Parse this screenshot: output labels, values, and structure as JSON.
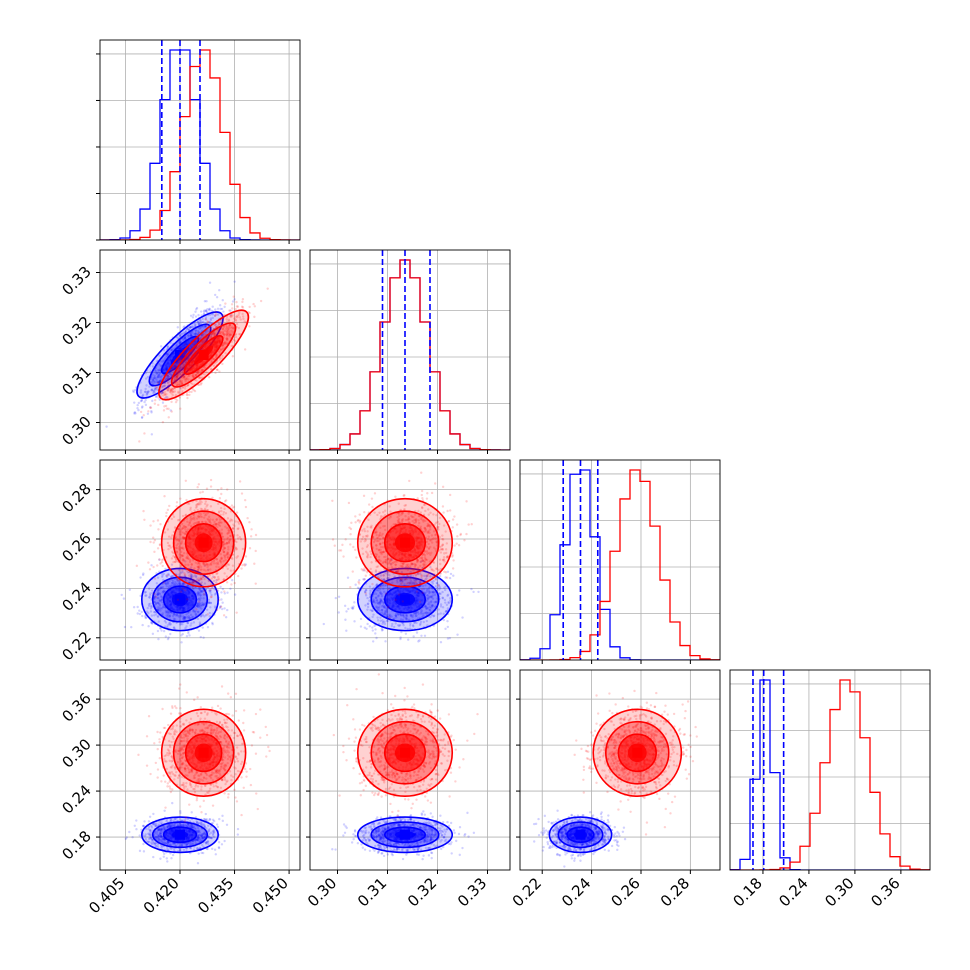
{
  "chart_data": {
    "type": "corner",
    "description_free": true,
    "title": "",
    "grid": true,
    "colors": {
      "series_a": "#0000ff",
      "series_b": "#ff0000"
    },
    "parameters": [
      {
        "range": [
          0.398,
          0.453
        ],
        "ticks": [
          0.405,
          0.42,
          0.435,
          0.45
        ],
        "tick_labels": [
          "0.405",
          "0.420",
          "0.435",
          "0.450"
        ]
      },
      {
        "range": [
          0.2945,
          0.3345
        ],
        "ticks": [
          0.3,
          0.31,
          0.32,
          0.33
        ],
        "tick_labels": [
          "0.30",
          "0.31",
          "0.32",
          "0.33"
        ]
      },
      {
        "range": [
          0.211,
          0.292
        ],
        "ticks": [
          0.22,
          0.24,
          0.26,
          0.28
        ],
        "tick_labels": [
          "0.22",
          "0.24",
          "0.26",
          "0.28"
        ]
      },
      {
        "range": [
          0.137,
          0.398
        ],
        "ticks": [
          0.18,
          0.24,
          0.3,
          0.36
        ],
        "tick_labels": [
          "0.18",
          "0.24",
          "0.30",
          "0.36"
        ]
      }
    ],
    "series": [
      {
        "color": "#0000ff",
        "mean": [
          0.42,
          0.3135,
          0.2355,
          0.183
        ],
        "std": [
          0.005,
          0.0045,
          0.006,
          0.011
        ],
        "corr01": 0.85,
        "quantiles_dashed": true
      },
      {
        "color": "#ff0000",
        "mean": [
          0.4265,
          0.3135,
          0.2585,
          0.29
        ],
        "std": [
          0.0055,
          0.0045,
          0.0085,
          0.027
        ],
        "corr01": 0.85,
        "quantiles_dashed": false
      }
    ],
    "quantile_lines": [
      [
        0.415,
        0.42,
        0.4255
      ],
      [
        0.309,
        0.3135,
        0.3185
      ],
      [
        0.2285,
        0.2355,
        0.2425
      ],
      [
        0.167,
        0.181,
        0.207
      ]
    ]
  }
}
